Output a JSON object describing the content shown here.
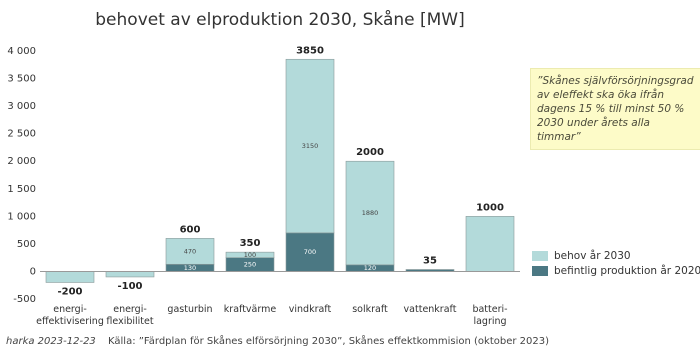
{
  "chart_data": {
    "type": "stacked_bar",
    "title": "behovet av elproduktion 2030, Skåne [MW]",
    "categories": [
      "energi-\neffektivisering",
      "energi-\nflexibilitet",
      "gasturbin",
      "kraftvärme",
      "vindkraft",
      "solkraft",
      "vattenkraft",
      "batteri-\nlagring"
    ],
    "series": [
      {
        "name": "befintlig produktion år 2020",
        "color": "#4b7883",
        "values": [
          null,
          null,
          130,
          250,
          700,
          120,
          35,
          null
        ]
      },
      {
        "name": "behov år 2030",
        "color": "#b3dada",
        "values": [
          -200,
          -100,
          470,
          100,
          3150,
          1880,
          null,
          1000
        ]
      }
    ],
    "totals": [
      -200,
      -100,
      600,
      350,
      3850,
      2000,
      35,
      1000
    ],
    "ylim": [
      -500,
      4000
    ],
    "yticks": [
      -500,
      0,
      500,
      {
        "value": 1000,
        "label": "1 000"
      },
      {
        "value": 1500,
        "label": "1 500"
      },
      {
        "value": 2000,
        "label": "2 000"
      },
      {
        "value": 2500,
        "label": "2 500"
      },
      {
        "value": 3000,
        "label": "3 000"
      },
      {
        "value": 3500,
        "label": "3 500"
      },
      {
        "value": 4000,
        "label": "4 000"
      }
    ],
    "grid": false,
    "legend": "lower right",
    "annotation": "”Skånes självförsörjningsgrad av eleffekt ska öka ifrån dagens 15 % till minst 50 % 2030 under årets alla timmar”",
    "footer_left": "harka 2023-12-23",
    "footer_source": "Källa: ”Färdplan för Skånes elförsörjning 2030”, Skånes effektkommision (oktober 2023)"
  }
}
